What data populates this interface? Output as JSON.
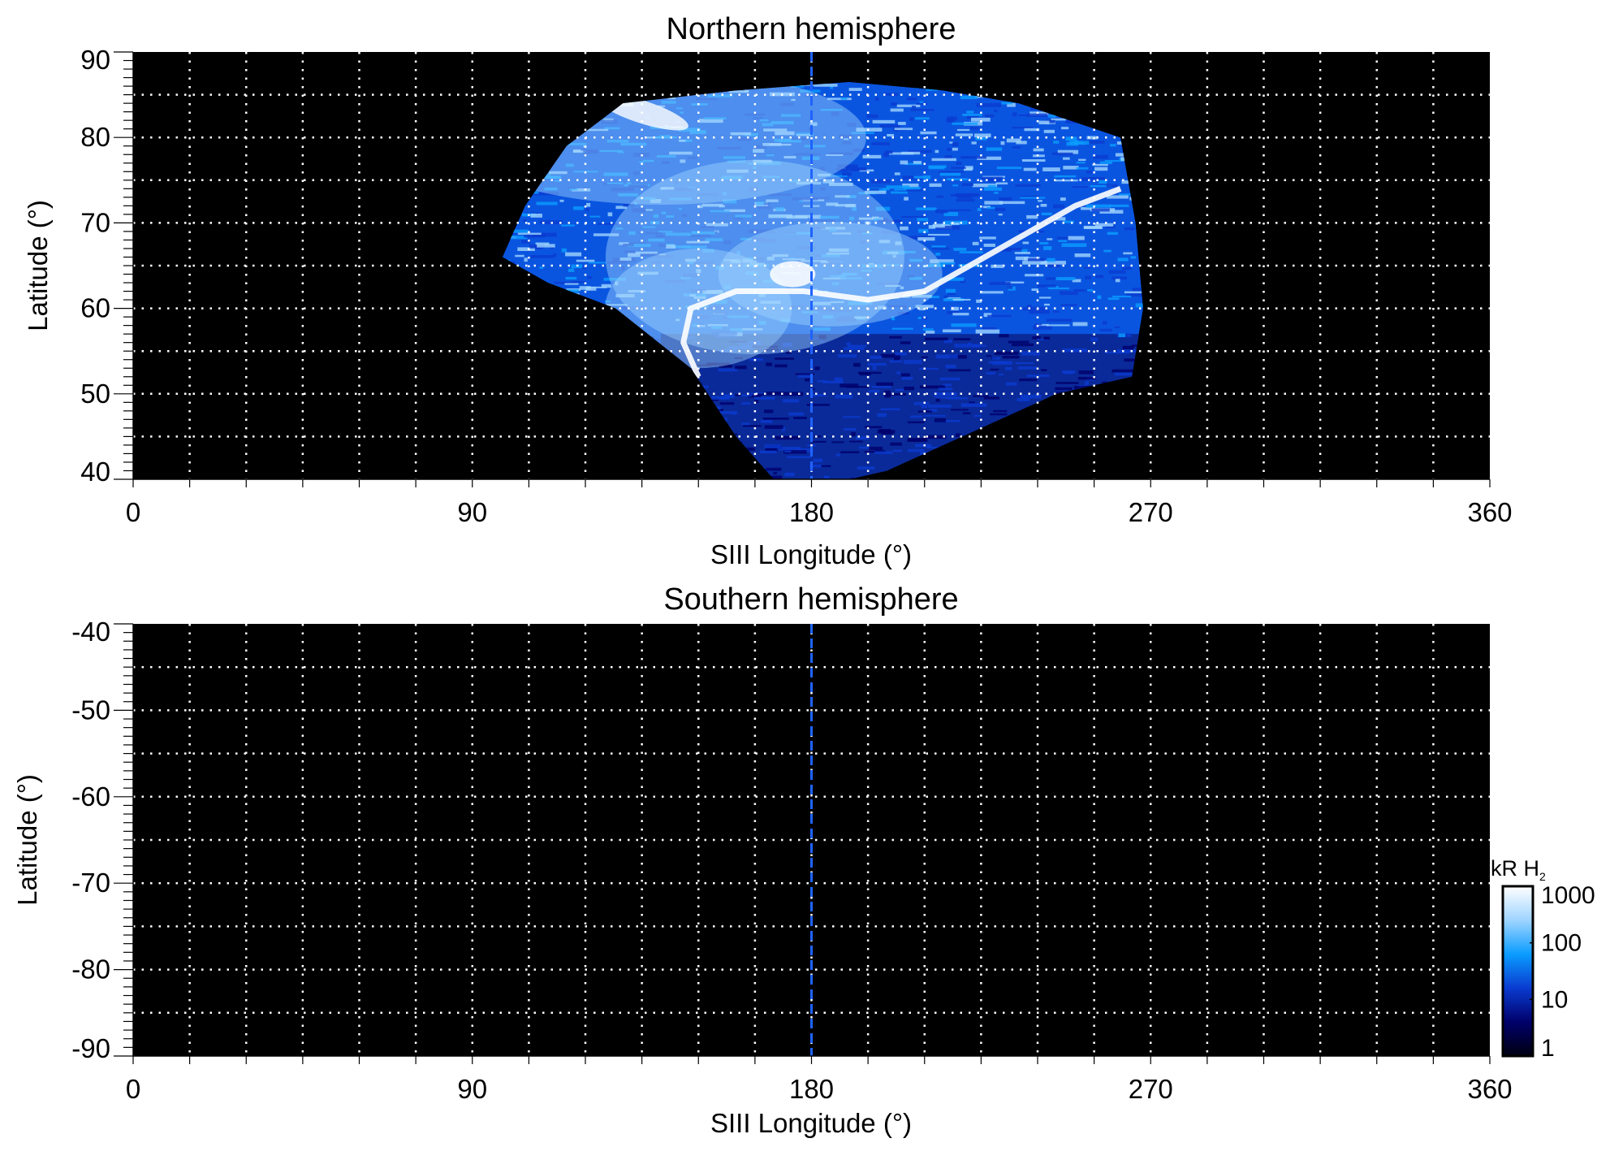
{
  "chart_data": [
    {
      "type": "heatmap",
      "title": "Northern hemisphere",
      "xlabel": "SIII Longitude (°)",
      "ylabel": "Latitude (°)",
      "xlim": [
        0,
        360
      ],
      "ylim": [
        40,
        90
      ],
      "xticks": [
        "0",
        "90",
        "180",
        "270",
        "360"
      ],
      "yticks": [
        "40",
        "50",
        "60",
        "70",
        "80",
        "90"
      ],
      "grid": true,
      "grid_x_step": 15,
      "grid_y_step": 5,
      "reference_line_longitude": 180,
      "coverage_longitude_range": [
        98,
        265
      ],
      "coverage_latitude_range": [
        40,
        87
      ],
      "background_color": "#000000"
    },
    {
      "type": "heatmap",
      "title": "Southern hemisphere",
      "xlabel": "SIII Longitude (°)",
      "ylabel": "Latitude (°)",
      "xlim": [
        0,
        360
      ],
      "ylim": [
        -90,
        -40
      ],
      "xticks": [
        "0",
        "90",
        "180",
        "270",
        "360"
      ],
      "yticks": [
        "-90",
        "-80",
        "-70",
        "-60",
        "-50",
        "-40"
      ],
      "grid": true,
      "grid_x_step": 15,
      "grid_y_step": 5,
      "reference_line_longitude": 180,
      "background_color": "#000000"
    }
  ],
  "colorbar": {
    "label": "kR H",
    "label_sub": "2",
    "scale": "log",
    "range": [
      1,
      1000
    ],
    "ticks": [
      "1",
      "10",
      "100",
      "1000"
    ],
    "colors": [
      "#000010",
      "#00006a",
      "#0a3bd0",
      "#0a9cff",
      "#9fd4ff",
      "#ffffff"
    ]
  },
  "colors": {
    "reference_line": "#1f63ff",
    "grid": "#ffffff"
  }
}
